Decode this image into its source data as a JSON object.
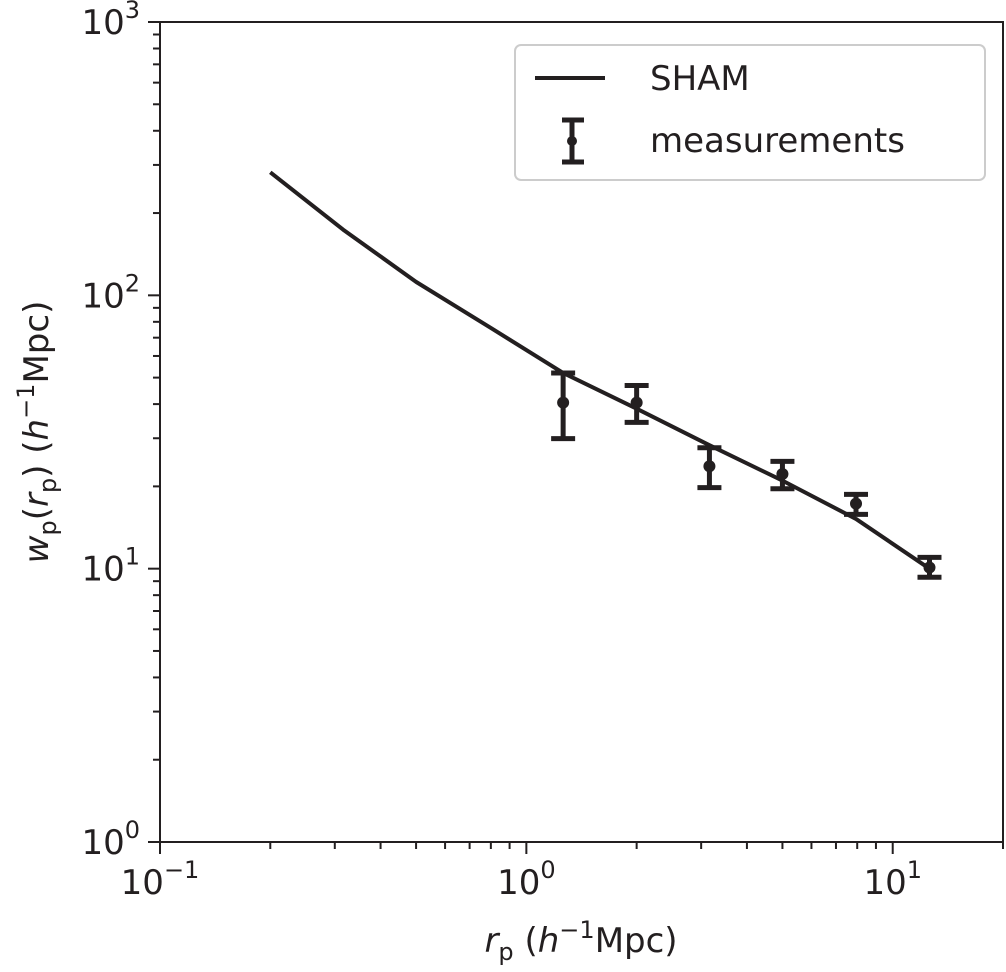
{
  "chart_data": {
    "type": "line",
    "title": "",
    "xlabel": "r_p (h^-1 Mpc)",
    "ylabel": "w_p(r_p) (h^-1 Mpc)",
    "xscale": "log",
    "yscale": "log",
    "xlim": [
      0.1,
      20
    ],
    "ylim": [
      1,
      1000
    ],
    "x_ticks": [
      {
        "value": 0.1,
        "base": "10",
        "exp": "−1"
      },
      {
        "value": 1,
        "base": "10",
        "exp": "0"
      },
      {
        "value": 10,
        "base": "10",
        "exp": "1"
      }
    ],
    "y_ticks": [
      {
        "value": 1,
        "base": "10",
        "exp": "0"
      },
      {
        "value": 10,
        "base": "10",
        "exp": "1"
      },
      {
        "value": 100,
        "base": "10",
        "exp": "2"
      },
      {
        "value": 1000,
        "base": "10",
        "exp": "3"
      }
    ],
    "grid": false,
    "legend_position": "top-right",
    "series": [
      {
        "name": "SHAM",
        "style": "line",
        "color": "#231f20",
        "x": [
          0.2,
          0.316,
          0.5,
          0.8,
          1.26,
          2.0,
          3.16,
          5.0,
          7.94,
          12.6
        ],
        "y": [
          282,
          174,
          112,
          76,
          52,
          38.5,
          28.3,
          21,
          15.2,
          10
        ]
      },
      {
        "name": "measurements",
        "style": "errorbar",
        "color": "#231f20",
        "x": [
          1.26,
          2.0,
          3.16,
          5.0,
          7.94,
          12.6
        ],
        "y": [
          40.5,
          40.5,
          23.7,
          22.2,
          17.3,
          10.1
        ],
        "y_low": [
          29.9,
          34.3,
          19.8,
          19.6,
          15.8,
          9.3
        ],
        "y_high": [
          52,
          46.8,
          27.7,
          24.7,
          18.7,
          11
        ]
      }
    ]
  }
}
